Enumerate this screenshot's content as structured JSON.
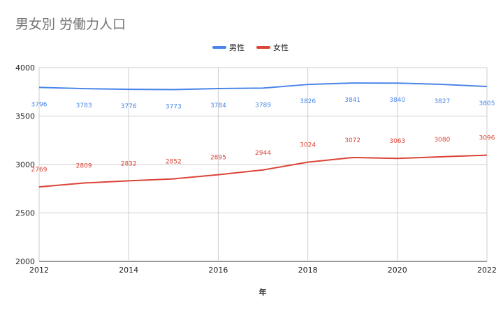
{
  "chart_data": {
    "type": "line",
    "title": "男女別 労働力人口",
    "xlabel": "年",
    "ylabel": "",
    "x": [
      2012,
      2013,
      2014,
      2015,
      2016,
      2017,
      2018,
      2019,
      2020,
      2021,
      2022
    ],
    "xticks": [
      "2012",
      "2014",
      "2016",
      "2018",
      "2020",
      "2022"
    ],
    "ylim": [
      2000,
      4000
    ],
    "yticks": [
      "2000",
      "2500",
      "3000",
      "3500",
      "4000"
    ],
    "grid": true,
    "legend_position": "top",
    "series": [
      {
        "name": "男性",
        "color": "#4a86e8",
        "values": [
          3796,
          3783,
          3776,
          3773,
          3784,
          3789,
          3826,
          3841,
          3840,
          3827,
          3805
        ],
        "labels": [
          "3796",
          "3783",
          "3776",
          "3773",
          "3784",
          "3789",
          "3826",
          "3841",
          "3840",
          "3827",
          "3805"
        ]
      },
      {
        "name": "女性",
        "color": "#db4437",
        "values": [
          2769,
          2809,
          2832,
          2852,
          2895,
          2944,
          3024,
          3072,
          3063,
          3080,
          3096
        ],
        "labels": [
          "2769",
          "2809",
          "2832",
          "2852",
          "2895",
          "2944",
          "3024",
          "3072",
          "3063",
          "3080",
          "3096"
        ]
      }
    ]
  }
}
